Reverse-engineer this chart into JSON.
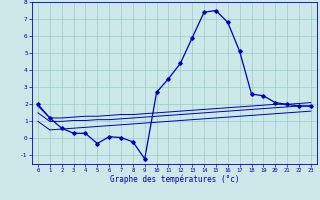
{
  "xlabel": "Graphe des températures (°c)",
  "background_color": "#cce8e8",
  "grid_color": "#99cccc",
  "line_color": "#0000bb",
  "xlim": [
    -0.5,
    23.5
  ],
  "ylim": [
    -1.5,
    8.0
  ],
  "yticks": [
    -1,
    0,
    1,
    2,
    3,
    4,
    5,
    6,
    7,
    8
  ],
  "xticks": [
    0,
    1,
    2,
    3,
    4,
    5,
    6,
    7,
    8,
    9,
    10,
    11,
    12,
    13,
    14,
    15,
    16,
    17,
    18,
    19,
    20,
    21,
    22,
    23
  ],
  "hours": [
    0,
    1,
    2,
    3,
    4,
    5,
    6,
    7,
    8,
    9,
    10,
    11,
    12,
    13,
    14,
    15,
    16,
    17,
    18,
    19,
    20,
    21,
    22,
    23
  ],
  "temp_main": [
    2.0,
    1.2,
    0.6,
    0.3,
    0.3,
    -0.3,
    0.1,
    0.05,
    -0.2,
    -1.2,
    2.7,
    3.5,
    4.4,
    5.9,
    7.4,
    7.5,
    6.8,
    5.1,
    2.6,
    2.5,
    2.1,
    2.0,
    1.9,
    1.9
  ],
  "temp_line1": [
    1.9,
    1.2,
    1.2,
    1.25,
    1.3,
    1.3,
    1.35,
    1.4,
    1.4,
    1.45,
    1.5,
    1.55,
    1.6,
    1.65,
    1.7,
    1.75,
    1.8,
    1.85,
    1.9,
    1.95,
    2.0,
    2.0,
    2.05,
    2.1
  ],
  "temp_line2": [
    1.5,
    1.0,
    1.0,
    1.05,
    1.05,
    1.1,
    1.1,
    1.15,
    1.2,
    1.25,
    1.3,
    1.35,
    1.4,
    1.45,
    1.5,
    1.55,
    1.6,
    1.65,
    1.7,
    1.75,
    1.8,
    1.85,
    1.9,
    1.9
  ],
  "temp_line3": [
    1.0,
    0.5,
    0.55,
    0.6,
    0.65,
    0.7,
    0.75,
    0.8,
    0.85,
    0.9,
    0.95,
    1.0,
    1.05,
    1.1,
    1.15,
    1.2,
    1.25,
    1.3,
    1.35,
    1.4,
    1.45,
    1.5,
    1.55,
    1.6
  ]
}
